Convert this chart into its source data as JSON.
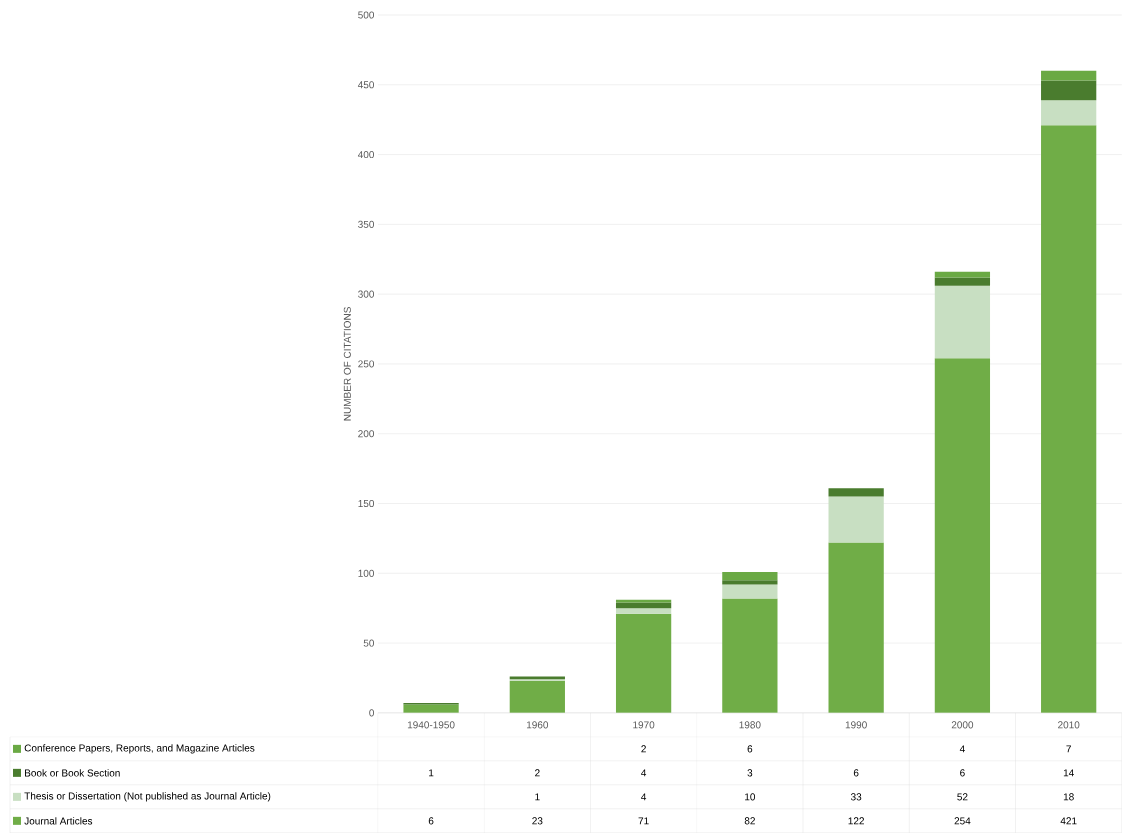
{
  "chart_data": {
    "type": "bar",
    "stacked": true,
    "ylabel": "NUMBER OF CITATIONS",
    "categories": [
      "1940-1950",
      "1960",
      "1970",
      "1980",
      "1990",
      "2000",
      "2010"
    ],
    "series": [
      {
        "name": "Journal Articles",
        "color": "#70ad47",
        "values": [
          6,
          23,
          71,
          82,
          122,
          254,
          421
        ]
      },
      {
        "name": "Thesis or Dissertation (Not published as Journal Article)",
        "color": "#c8dfc2",
        "values": [
          null,
          1,
          4,
          10,
          33,
          52,
          18
        ]
      },
      {
        "name": "Book or Book Section",
        "color": "#4a7c2e",
        "values": [
          1,
          2,
          4,
          3,
          6,
          6,
          14
        ]
      },
      {
        "name": "Conference Papers, Reports, and Magazine Articles",
        "color": "#6aa944",
        "values": [
          null,
          null,
          2,
          6,
          null,
          4,
          7
        ]
      }
    ],
    "ylim": [
      0,
      500
    ],
    "yticks": [
      0,
      50,
      100,
      150,
      200,
      250,
      300,
      350,
      400,
      450,
      500
    ],
    "grid": "y",
    "legend": "bottom",
    "data_labels": true
  }
}
